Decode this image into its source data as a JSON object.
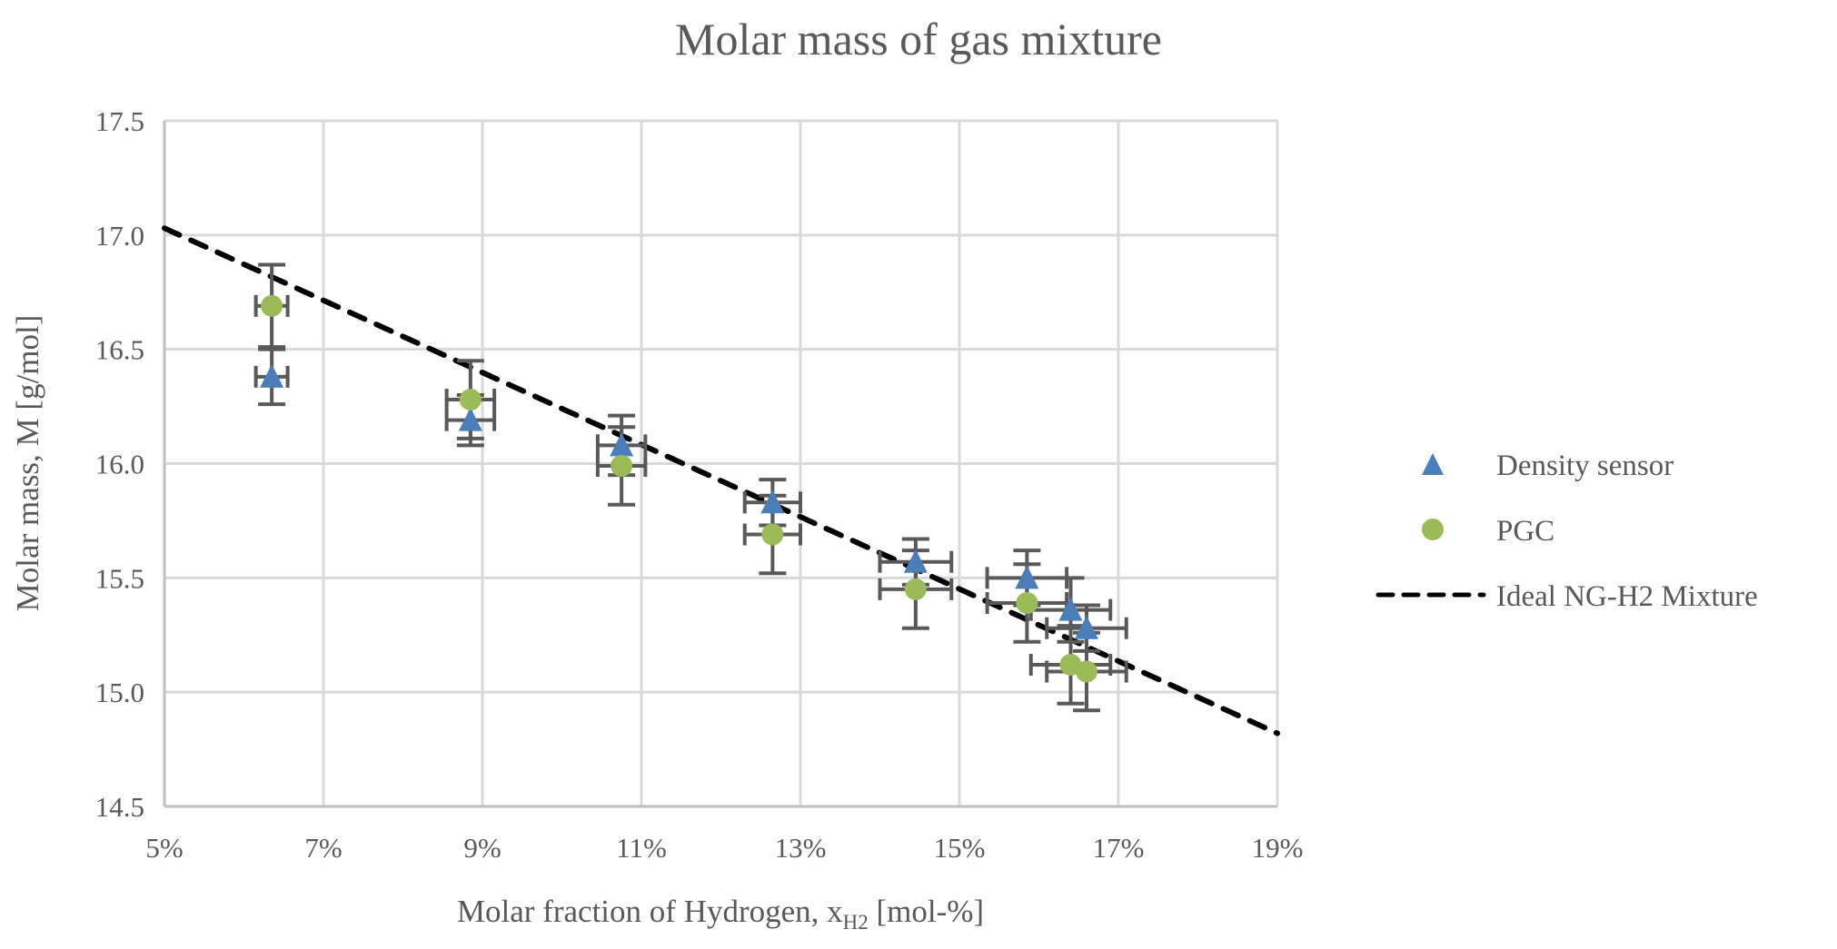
{
  "chart_data": {
    "type": "scatter",
    "title": "Molar mass of gas mixture",
    "xlabel": "Molar fraction of Hydrogen, x",
    "xlabel_sub": "H2",
    "xlabel_suffix": " [mol-%]",
    "ylabel": "Molar mass, M [g/mol]",
    "xlim": [
      5,
      19
    ],
    "ylim": [
      14.5,
      17.5
    ],
    "xticks": [
      5,
      7,
      9,
      11,
      13,
      15,
      17,
      19
    ],
    "xtick_labels": [
      "5%",
      "7%",
      "9%",
      "11%",
      "13%",
      "15%",
      "17%",
      "19%"
    ],
    "yticks": [
      14.5,
      15.0,
      15.5,
      16.0,
      16.5,
      17.0,
      17.5
    ],
    "ytick_labels": [
      "14.5",
      "15.0",
      "15.5",
      "16.0",
      "16.5",
      "17.0",
      "17.5"
    ],
    "grid": true,
    "legend_position": "right",
    "series": [
      {
        "name": "Density sensor",
        "marker": "triangle",
        "color": "#4a7ebb",
        "x": [
          6.35,
          8.85,
          10.75,
          12.65,
          14.45,
          15.85,
          16.4,
          16.6
        ],
        "y": [
          16.38,
          16.19,
          16.08,
          15.83,
          15.57,
          15.5,
          15.36,
          15.28
        ],
        "xerr": [
          0.2,
          0.3,
          0.3,
          0.35,
          0.45,
          0.5,
          0.5,
          0.5
        ],
        "yerr": [
          0.12,
          0.11,
          0.13,
          0.1,
          0.1,
          0.12,
          0.14,
          0.1
        ]
      },
      {
        "name": "PGC",
        "marker": "circle",
        "color": "#9bbb59",
        "x": [
          6.35,
          8.85,
          10.75,
          12.65,
          14.45,
          15.85,
          16.4,
          16.6
        ],
        "y": [
          16.69,
          16.28,
          15.99,
          15.69,
          15.45,
          15.39,
          15.12,
          15.09
        ],
        "xerr": [
          0.2,
          0.3,
          0.3,
          0.35,
          0.45,
          0.5,
          0.5,
          0.5
        ],
        "yerr": [
          0.18,
          0.17,
          0.17,
          0.17,
          0.17,
          0.17,
          0.17,
          0.17
        ]
      },
      {
        "name": "Ideal NG-H2 Mixture",
        "type": "line",
        "style": "dashed",
        "color": "#000000",
        "x": [
          5,
          19
        ],
        "y": [
          17.03,
          14.82
        ]
      }
    ]
  }
}
